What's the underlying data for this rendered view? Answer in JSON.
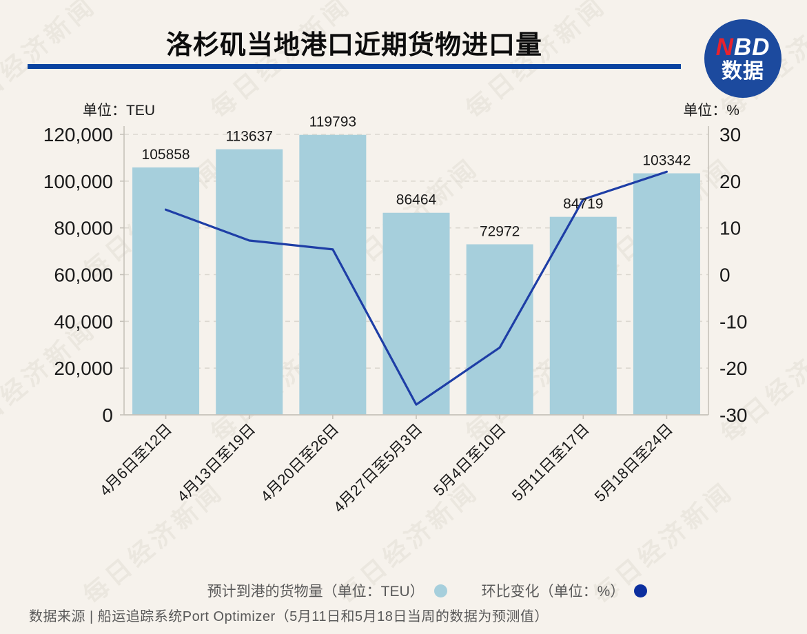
{
  "header": {
    "title": "洛杉矶当地港口近期货物进口量",
    "rule_color": "#0a43a0"
  },
  "logo": {
    "n": "N",
    "bd": "BD",
    "sub": "数据",
    "bg_color": "#1c4a9e",
    "n_color": "#e8222d"
  },
  "watermark": {
    "text": "每日经济新闻"
  },
  "chart_data": {
    "type": "bar+line combo",
    "categories": [
      "4月6日至12日",
      "4月13日至19日",
      "4月20日至26日",
      "4月27日至5月3日",
      "5月4日至10日",
      "5月11日至17日",
      "5月18日至24日"
    ],
    "series": [
      {
        "name": "预计到港的货物量（单位：TEU）",
        "type": "bar",
        "axis": "left",
        "color": "#a6cfdc",
        "values": [
          105858,
          113637,
          119793,
          86464,
          72972,
          84719,
          103342
        ],
        "value_labels": [
          "105858",
          "113637",
          "119793",
          "86464",
          "72972",
          "84719",
          "103342"
        ]
      },
      {
        "name": "环比变化（单位：%）",
        "type": "line",
        "axis": "right",
        "color": "#1e3ea6",
        "values": [
          13.9,
          7.3,
          5.4,
          -27.8,
          -15.6,
          16.1,
          22.0
        ]
      }
    ],
    "left_axis": {
      "unit_label": "单位：TEU",
      "min": 0,
      "max": 120000,
      "step": 20000,
      "tick_labels": [
        "0",
        "20,000",
        "40,000",
        "60,000",
        "80,000",
        "100,000",
        "120,000"
      ]
    },
    "right_axis": {
      "unit_label": "单位：%",
      "min": -30,
      "max": 30,
      "step": 10,
      "tick_labels": [
        "-30",
        "-20",
        "-10",
        "0",
        "10",
        "20",
        "30"
      ]
    },
    "grid": "horizontal dashed",
    "legend_position": "bottom center",
    "colors": {
      "grid_line": "#dcd8d0",
      "spine": "#c6c2ba",
      "tick_text": "#1a1a1a",
      "bar_value_text": "#1a1a1a"
    }
  },
  "legend": {
    "items": [
      {
        "label": "预计到港的货物量（单位：TEU）",
        "color": "#a6cfdc"
      },
      {
        "label": "环比变化（单位：%）",
        "color": "#0c2f9f"
      }
    ]
  },
  "footer": {
    "source": "数据来源 | 船运追踪系统Port Optimizer（5月11日和5月18日当周的数据为预测值）"
  }
}
